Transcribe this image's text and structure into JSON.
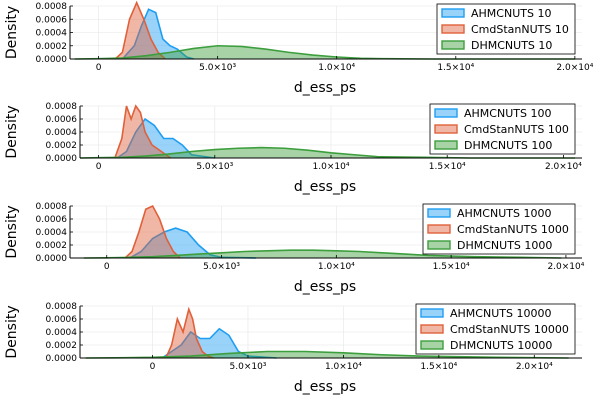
{
  "colors": {
    "AHMCNUTS": "#1e9ef2",
    "CmdStanNUTS": "#e0603a",
    "DHMCNUTS": "#3c9e3c"
  },
  "chart_data": [
    {
      "type": "area",
      "xlabel": "d_ess_ps",
      "ylabel": "Density",
      "xlim": [
        -1200,
        20300
      ],
      "ylim": [
        0,
        0.0008
      ],
      "xticks": [
        0,
        5000,
        10000,
        15000,
        20000
      ],
      "xtick_labels": [
        "0",
        "5.0×10³",
        "1.0×10⁴",
        "1.5×10⁴",
        "2.0×10⁴"
      ],
      "yticks": [
        0,
        0.0002,
        0.0004,
        0.0006,
        0.0008
      ],
      "ytick_labels": [
        "0.0000",
        "0.0002",
        "0.0004",
        "0.0006",
        "0.0008"
      ],
      "grid": true,
      "legend": "top-right",
      "series": [
        {
          "name": "AHMCNUTS 10",
          "key": "AHMCNUTS",
          "x": [
            1000,
            1500,
            1800,
            2100,
            2400,
            2700,
            3000,
            3300,
            3700,
            4000
          ],
          "y": [
            0,
            0.0002,
            0.0005,
            0.00075,
            0.0007,
            0.0003,
            0.0002,
            0.00015,
            3e-05,
            0
          ]
        },
        {
          "name": "CmdStanNUTS 10",
          "key": "CmdStanNUTS",
          "x": [
            700,
            1000,
            1300,
            1600,
            1900,
            2200,
            2500,
            2800
          ],
          "y": [
            0,
            0.0001,
            0.0006,
            0.00085,
            0.0006,
            0.0003,
            0.0001,
            0
          ]
        },
        {
          "name": "DHMCNUTS 10",
          "key": "DHMCNUTS",
          "x": [
            -1000,
            0,
            1000,
            2000,
            3000,
            4000,
            5000,
            6000,
            7000,
            8000,
            9000,
            10000,
            11000,
            12000,
            14000,
            16000,
            18000,
            20000
          ],
          "y": [
            0,
            5e-06,
            1.5e-05,
            5e-05,
            0.0001,
            0.00016,
            0.0002,
            0.00019,
            0.00015,
            0.0001,
            6e-05,
            3e-05,
            1e-05,
            5e-06,
            0,
            0,
            0,
            0
          ]
        }
      ]
    },
    {
      "type": "area",
      "xlabel": "d_ess_ps",
      "ylabel": "Density",
      "xlim": [
        -800,
        20800
      ],
      "ylim": [
        0,
        0.0008
      ],
      "xticks": [
        0,
        5000,
        10000,
        15000,
        20000
      ],
      "xtick_labels": [
        "0",
        "5.0×10³",
        "1.0×10⁴",
        "1.5×10⁴",
        "2.0×10⁴"
      ],
      "yticks": [
        0,
        0.0002,
        0.0004,
        0.0006,
        0.0008
      ],
      "ytick_labels": [
        "0.0000",
        "0.0002",
        "0.0004",
        "0.0006",
        "0.0008"
      ],
      "grid": true,
      "legend": "top-right",
      "series": [
        {
          "name": "AHMCNUTS 100",
          "key": "AHMCNUTS",
          "x": [
            800,
            1200,
            1600,
            2000,
            2400,
            2800,
            3200,
            3600,
            4000,
            5000
          ],
          "y": [
            0,
            0.0001,
            0.0004,
            0.0006,
            0.0005,
            0.0003,
            0.0003,
            0.0002,
            5e-05,
            0
          ]
        },
        {
          "name": "CmdStanNUTS 100",
          "key": "CmdStanNUTS",
          "x": [
            700,
            1000,
            1200,
            1400,
            1600,
            1800,
            2000,
            2300,
            2700,
            3100
          ],
          "y": [
            0,
            0.0003,
            0.0008,
            0.0006,
            0.0008,
            0.0007,
            0.0004,
            0.0002,
            0.0001,
            0
          ]
        },
        {
          "name": "DHMCNUTS 100",
          "key": "DHMCNUTS",
          "x": [
            -800,
            0,
            1000,
            2000,
            3000,
            4000,
            5000,
            6000,
            7000,
            8000,
            9000,
            10000,
            11000,
            12000,
            14000,
            16000,
            18000,
            20500
          ],
          "y": [
            0,
            5e-06,
            1e-05,
            3e-05,
            6e-05,
            0.0001,
            0.00013,
            0.00015,
            0.00016,
            0.00015,
            0.00012,
            8e-05,
            5e-05,
            2e-05,
            1e-05,
            0,
            0,
            0
          ]
        }
      ]
    },
    {
      "type": "area",
      "xlabel": "d_ess_ps",
      "ylabel": "Density",
      "xlim": [
        -1600,
        20700
      ],
      "ylim": [
        0,
        0.0008
      ],
      "xticks": [
        0,
        5000,
        10000,
        15000,
        20000
      ],
      "xtick_labels": [
        "0",
        "5.0×10³",
        "1.0×10⁴",
        "1.5×10⁴",
        "2.0×10⁴"
      ],
      "yticks": [
        0,
        0.0002,
        0.0004,
        0.0006,
        0.0008
      ],
      "ytick_labels": [
        "0.0000",
        "0.0002",
        "0.0004",
        "0.0006",
        "0.0008"
      ],
      "grid": true,
      "legend": "top-right",
      "series": [
        {
          "name": "AHMCNUTS 1000",
          "key": "AHMCNUTS",
          "x": [
            1000,
            1500,
            2000,
            2500,
            3000,
            3500,
            4000,
            4500,
            5000,
            6500
          ],
          "y": [
            0,
            0.0001,
            0.0003,
            0.0004,
            0.00046,
            0.0004,
            0.0002,
            5e-05,
            1e-05,
            0
          ]
        },
        {
          "name": "CmdStanNUTS 1000",
          "key": "CmdStanNUTS",
          "x": [
            800,
            1100,
            1400,
            1700,
            2000,
            2300,
            2600,
            2900,
            3200
          ],
          "y": [
            0,
            0.0001,
            0.0004,
            0.00075,
            0.0008,
            0.0006,
            0.0003,
            0.0001,
            0
          ]
        },
        {
          "name": "DHMCNUTS 1000",
          "key": "DHMCNUTS",
          "x": [
            -1000,
            0,
            1000,
            2000,
            3000,
            4000,
            5000,
            6000,
            7000,
            8000,
            9000,
            10000,
            11000,
            12000,
            13000,
            14000,
            16000,
            18000,
            19800
          ],
          "y": [
            0,
            3e-06,
            1e-05,
            2e-05,
            4e-05,
            6e-05,
            8e-05,
            0.0001,
            0.00011,
            0.00012,
            0.00012,
            0.00011,
            0.0001,
            8e-05,
            6e-05,
            4e-05,
            2e-05,
            1e-05,
            0
          ]
        }
      ]
    },
    {
      "type": "area",
      "xlabel": "d_ess_ps",
      "ylabel": "Density",
      "xlim": [
        -3800,
        22500
      ],
      "ylim": [
        0,
        0.0008
      ],
      "xticks": [
        0,
        5000,
        10000,
        15000,
        20000
      ],
      "xtick_labels": [
        "0",
        "5.0×10³",
        "1.0×10⁴",
        "1.5×10⁴",
        "2.0×10⁴"
      ],
      "yticks": [
        0,
        0.0002,
        0.0004,
        0.0006,
        0.0008
      ],
      "ytick_labels": [
        "0.0000",
        "0.0002",
        "0.0004",
        "0.0006",
        "0.0008"
      ],
      "grid": true,
      "legend": "top-right",
      "series": [
        {
          "name": "AHMCNUTS 10000",
          "key": "AHMCNUTS",
          "x": [
            500,
            1000,
            1500,
            2000,
            2500,
            3000,
            3500,
            4000,
            4500,
            5000,
            6500
          ],
          "y": [
            0,
            0.0001,
            0.0002,
            0.0004,
            0.0003,
            0.0003,
            0.00045,
            0.00035,
            0.0001,
            3e-05,
            0
          ]
        },
        {
          "name": "CmdStanNUTS 10000",
          "key": "CmdStanNUTS",
          "x": [
            700,
            1000,
            1300,
            1600,
            1900,
            2100,
            2300,
            2600,
            2900,
            3200
          ],
          "y": [
            0,
            0.0002,
            0.0006,
            0.0004,
            0.00075,
            0.0006,
            0.0003,
            0.0001,
            3e-05,
            0
          ]
        },
        {
          "name": "DHMCNUTS 10000",
          "key": "DHMCNUTS",
          "x": [
            -3500,
            -2000,
            0,
            2000,
            4000,
            6000,
            8000,
            10000,
            12000,
            14000,
            16000,
            18000,
            20000,
            21800
          ],
          "y": [
            0,
            3e-06,
            1e-05,
            3e-05,
            7e-05,
            0.0001,
            0.0001,
            8e-05,
            5e-05,
            3e-05,
            2e-05,
            1e-05,
            5e-06,
            0
          ]
        }
      ]
    }
  ]
}
